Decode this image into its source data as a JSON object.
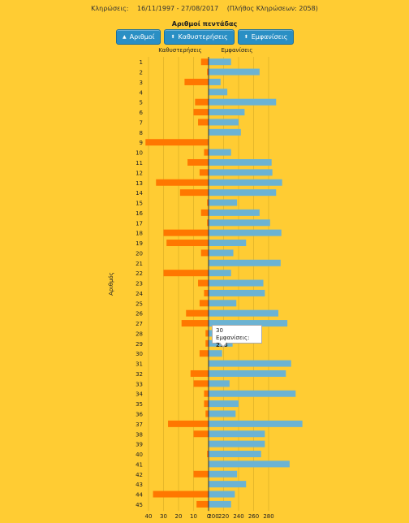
{
  "header": {
    "label": "Κληρώσεις:",
    "range": "16/11/1997 - 27/08/2017",
    "count_text": "(Πλήθος Κληρώσεων: 2058)"
  },
  "subtitle": "Αριθμοί πεντάδας",
  "buttons": [
    {
      "label": "Αριθμοί",
      "icon": "sort-up-icon"
    },
    {
      "label": "Καθυστερήσεις",
      "icon": "sort-icon"
    },
    {
      "label": "Εμφανίσεις",
      "icon": "sort-icon"
    }
  ],
  "tooltip": {
    "number": "30",
    "label": "Εμφανίσεις:",
    "value": "218"
  },
  "chart_data": {
    "type": "bar",
    "orientation": "horizontal",
    "ylabel": "Αριθμός",
    "categories": [
      "1",
      "2",
      "3",
      "4",
      "5",
      "6",
      "7",
      "8",
      "9",
      "10",
      "11",
      "12",
      "13",
      "14",
      "15",
      "16",
      "17",
      "18",
      "19",
      "20",
      "21",
      "22",
      "23",
      "24",
      "25",
      "26",
      "27",
      "28",
      "29",
      "30",
      "31",
      "32",
      "33",
      "34",
      "35",
      "36",
      "37",
      "38",
      "39",
      "40",
      "41",
      "42",
      "43",
      "44",
      "45"
    ],
    "series": [
      {
        "name": "Καθυστερήσεις",
        "color": "#ff7700",
        "values": [
          5,
          1,
          16,
          0,
          9,
          10,
          7,
          0,
          42,
          3,
          14,
          6,
          35,
          19,
          1,
          5,
          1,
          30,
          28,
          5,
          0,
          30,
          7,
          3,
          6,
          15,
          18,
          2,
          2,
          6,
          0,
          12,
          10,
          3,
          3,
          2,
          27,
          10,
          0,
          1,
          0,
          10,
          0,
          37,
          8
        ]
      },
      {
        "name": "Εμφανίσεις",
        "color": "#6bb3d3",
        "values": [
          230,
          268,
          216,
          225,
          290,
          248,
          240,
          243,
          198,
          230,
          284,
          285,
          298,
          290,
          238,
          268,
          282,
          297,
          250,
          233,
          296,
          230,
          273,
          275,
          237,
          293,
          305,
          230,
          232,
          218,
          310,
          303,
          228,
          316,
          240,
          236,
          325,
          275,
          275,
          270,
          308,
          238,
          250,
          235,
          230
        ]
      }
    ],
    "x_ticks_left": [
      "40",
      "30",
      "20",
      "10",
      "0"
    ],
    "x_ticks_right": [
      "200",
      "220",
      "240",
      "260",
      "280"
    ],
    "left_range": [
      0,
      40
    ],
    "right_range": [
      200,
      280
    ]
  }
}
